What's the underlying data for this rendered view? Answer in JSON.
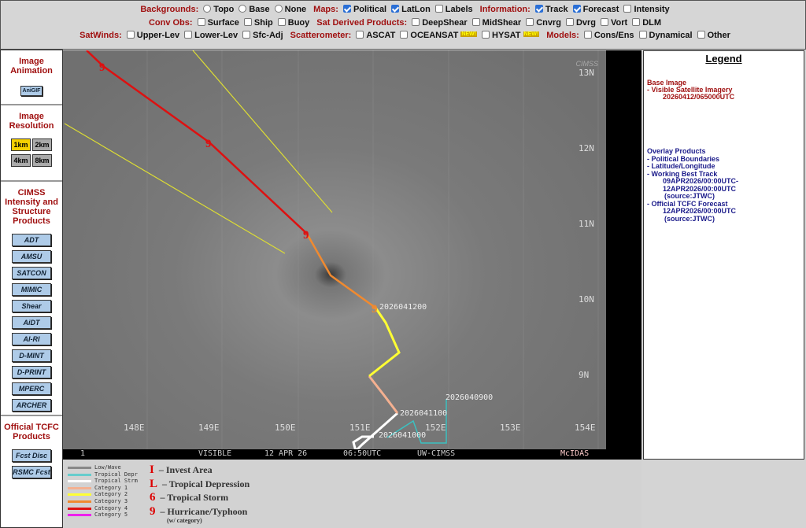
{
  "controls": {
    "backgrounds": {
      "label": "Backgrounds:",
      "options": [
        "Topo",
        "Base",
        "None"
      ]
    },
    "maps": {
      "label": "Maps:",
      "options": [
        {
          "t": "Political",
          "on": true
        },
        {
          "t": "LatLon",
          "on": true
        },
        {
          "t": "Labels",
          "on": false
        }
      ]
    },
    "information": {
      "label": "Information:",
      "options": [
        {
          "t": "Track",
          "on": true
        },
        {
          "t": "Forecast",
          "on": true
        },
        {
          "t": "Intensity",
          "on": false
        }
      ]
    },
    "conv_obs": {
      "label": "Conv Obs:",
      "options": [
        "Surface",
        "Ship",
        "Buoy"
      ]
    },
    "sat_derived": {
      "label": "Sat Derived Products:",
      "options": [
        "DeepShear",
        "MidShear",
        "Cnvrg",
        "Dvrg",
        "Vort",
        "DLM"
      ]
    },
    "satwinds": {
      "label": "SatWinds:",
      "options": [
        "Upper-Lev",
        "Lower-Lev",
        "Sfc-Adj"
      ]
    },
    "scatterometer": {
      "label": "Scatterometer:",
      "options": [
        "ASCAT",
        "OCEANSAT",
        "HYSAT"
      ],
      "new_badge": "NEW!"
    },
    "models": {
      "label": "Models:",
      "options": [
        "Cons/Ens",
        "Dynamical",
        "Other"
      ]
    }
  },
  "sidebar": {
    "animation": {
      "title": "Image Animation",
      "button": "AniGIF"
    },
    "resolution": {
      "title": "Image Resolution",
      "options": [
        "1km",
        "2km",
        "4km",
        "8km"
      ],
      "selected": "1km"
    },
    "cimss": {
      "title": "CIMSS Intensity and Structure Products",
      "buttons": [
        "ADT",
        "AMSU",
        "SATCON",
        "MIMIC",
        "Shear",
        "AiDT",
        "AI-RI",
        "D-MINT",
        "D-PRINT",
        "MPERC",
        "ARCHER"
      ]
    },
    "tcfc": {
      "title": "Official TCFC Products",
      "buttons": [
        "Fcst Disc",
        "RSMC Fcst"
      ]
    }
  },
  "map": {
    "lat_labels": [
      "13N",
      "12N",
      "11N",
      "10N",
      "9N"
    ],
    "lon_labels": [
      "148E",
      "149E",
      "150E",
      "151E",
      "152E",
      "153E",
      "154E"
    ],
    "track_labels": [
      "2026041200",
      "2026040900",
      "2026041100",
      "2026041000"
    ],
    "footer": {
      "frame": "1",
      "channel": "VISIBLE",
      "date": "12 APR 26",
      "time": "06:50UTC",
      "source": "UW-CIMSS",
      "brand": "McIDAS"
    },
    "logo": "CIMSS"
  },
  "legend": {
    "title": "Legend",
    "base_heading": "Base Image",
    "base_items": [
      "-  Visible Satellite Imagery",
      "20260412/065000UTC"
    ],
    "overlay_heading": "Overlay Products",
    "overlay_items": [
      "-  Political Boundaries",
      "-  Latitude/Longitude",
      "-  Working Best Track",
      "09APR2026/00:00UTC-",
      "12APR2026/00:00UTC",
      "(source:JTWC)",
      "-  Official TCFC Forecast",
      "12APR2026/00:00UTC",
      "(source:JTWC)"
    ]
  },
  "track_key": {
    "lines": [
      {
        "t": "Low/Wave",
        "c": "#888888"
      },
      {
        "t": "Tropical Depr",
        "c": "#66cccc"
      },
      {
        "t": "Tropical Strm",
        "c": "#ffffff"
      },
      {
        "t": "Category 1",
        "c": "#f4b090"
      },
      {
        "t": "Category 2",
        "c": "#ffff33"
      },
      {
        "t": "Category 3",
        "c": "#f08a30"
      },
      {
        "t": "Category 4",
        "c": "#dd1111"
      },
      {
        "t": "Category 5",
        "c": "#ee22ee"
      }
    ],
    "symbols": [
      {
        "s": "I",
        "t": "– Invest Area"
      },
      {
        "s": "L",
        "t": "– Tropical Depression"
      },
      {
        "s": "6",
        "t": "– Tropical Storm"
      },
      {
        "s": "9",
        "t": "– Hurricane/Typhoon"
      }
    ],
    "note": "(w/ category)"
  }
}
